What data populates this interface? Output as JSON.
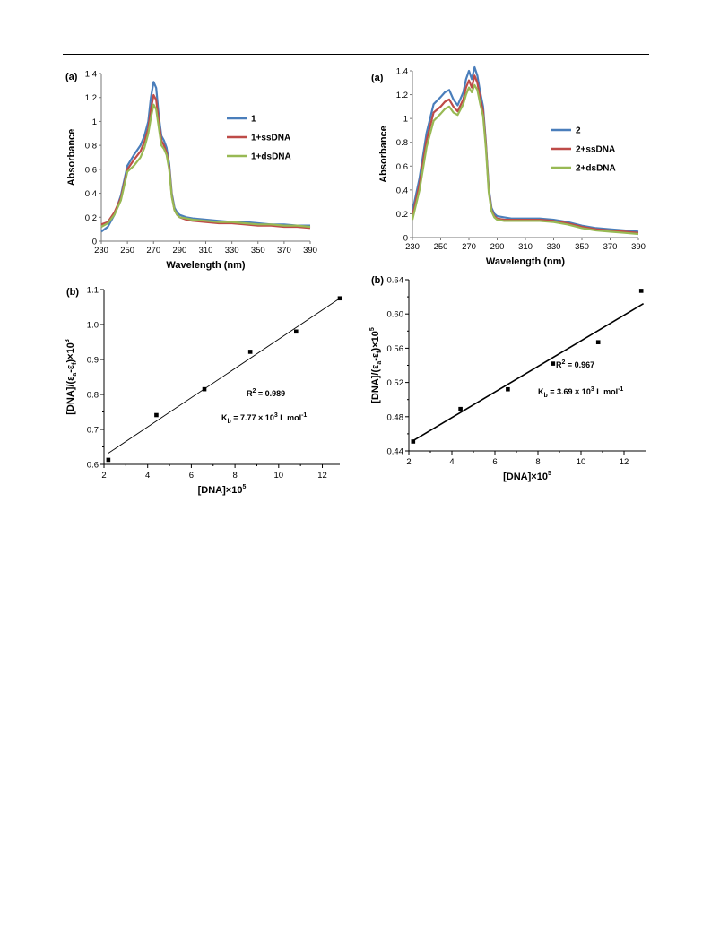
{
  "chart_data": [
    {
      "id": "p1a",
      "type": "line",
      "panel_label": "(a)",
      "xlabel": "Wavelength (nm)",
      "ylabel": "Absorbance",
      "xlim": [
        230,
        390
      ],
      "ylim": [
        0,
        1.4
      ],
      "xticks": [
        "230",
        "250",
        "270",
        "290",
        "310",
        "330",
        "350",
        "370",
        "390"
      ],
      "yticks": [
        "0",
        "0.2",
        "0.4",
        "0.6",
        "0.8",
        "1",
        "1.2",
        "1.4"
      ],
      "legend_position": "center-right",
      "series": [
        {
          "name": "1",
          "color": "#4a7ebb",
          "x": [
            230,
            235,
            240,
            245,
            250,
            255,
            260,
            263,
            266,
            268,
            270,
            272,
            274,
            276,
            278,
            280,
            282,
            284,
            286,
            288,
            290,
            295,
            300,
            310,
            320,
            330,
            340,
            350,
            360,
            370,
            380,
            390
          ],
          "y": [
            0.08,
            0.12,
            0.22,
            0.38,
            0.63,
            0.72,
            0.8,
            0.88,
            1.0,
            1.2,
            1.33,
            1.28,
            1.05,
            0.88,
            0.84,
            0.78,
            0.65,
            0.4,
            0.28,
            0.24,
            0.22,
            0.2,
            0.19,
            0.18,
            0.17,
            0.16,
            0.16,
            0.15,
            0.14,
            0.14,
            0.13,
            0.13
          ]
        },
        {
          "name": "1+ssDNA",
          "color": "#be4b48",
          "x": [
            230,
            235,
            240,
            245,
            250,
            255,
            260,
            263,
            266,
            268,
            270,
            272,
            274,
            276,
            278,
            280,
            282,
            284,
            286,
            288,
            290,
            295,
            300,
            310,
            320,
            330,
            340,
            350,
            360,
            370,
            380,
            390
          ],
          "y": [
            0.14,
            0.16,
            0.24,
            0.36,
            0.6,
            0.68,
            0.75,
            0.83,
            0.94,
            1.1,
            1.22,
            1.18,
            1.0,
            0.84,
            0.8,
            0.74,
            0.62,
            0.38,
            0.26,
            0.22,
            0.2,
            0.18,
            0.17,
            0.16,
            0.15,
            0.15,
            0.14,
            0.13,
            0.13,
            0.12,
            0.12,
            0.11
          ]
        },
        {
          "name": "1+dsDNA",
          "color": "#98b954",
          "x": [
            230,
            235,
            240,
            245,
            250,
            255,
            260,
            263,
            266,
            268,
            270,
            272,
            274,
            276,
            278,
            280,
            282,
            284,
            286,
            288,
            290,
            295,
            300,
            310,
            320,
            330,
            340,
            350,
            360,
            370,
            380,
            390
          ],
          "y": [
            0.12,
            0.15,
            0.22,
            0.34,
            0.58,
            0.63,
            0.7,
            0.78,
            0.9,
            1.03,
            1.14,
            1.1,
            0.95,
            0.8,
            0.77,
            0.72,
            0.6,
            0.37,
            0.26,
            0.22,
            0.2,
            0.19,
            0.18,
            0.17,
            0.16,
            0.16,
            0.15,
            0.14,
            0.14,
            0.13,
            0.13,
            0.12
          ]
        }
      ]
    },
    {
      "id": "p2a",
      "type": "line",
      "panel_label": "(a)",
      "xlabel": "Wavelength (nm)",
      "ylabel": "Absorbance",
      "xlim": [
        230,
        390
      ],
      "ylim": [
        0,
        1.4
      ],
      "xticks": [
        "230",
        "250",
        "270",
        "290",
        "310",
        "330",
        "350",
        "370",
        "390"
      ],
      "yticks": [
        "0",
        "0.2",
        "0.4",
        "0.6",
        "0.8",
        "1",
        "1.2",
        "1.4"
      ],
      "legend_position": "center-right",
      "series": [
        {
          "name": "2",
          "color": "#4a7ebb",
          "x": [
            230,
            235,
            240,
            245,
            250,
            253,
            256,
            259,
            262,
            266,
            268,
            270,
            272,
            274,
            276,
            278,
            280,
            282,
            284,
            286,
            288,
            290,
            295,
            300,
            310,
            320,
            330,
            340,
            350,
            360,
            370,
            380,
            390
          ],
          "y": [
            0.22,
            0.5,
            0.88,
            1.12,
            1.18,
            1.22,
            1.24,
            1.16,
            1.11,
            1.22,
            1.33,
            1.4,
            1.33,
            1.43,
            1.36,
            1.22,
            1.1,
            0.8,
            0.42,
            0.25,
            0.2,
            0.18,
            0.17,
            0.16,
            0.16,
            0.16,
            0.15,
            0.13,
            0.1,
            0.08,
            0.07,
            0.06,
            0.05
          ]
        },
        {
          "name": "2+ssDNA",
          "color": "#be4b48",
          "x": [
            230,
            235,
            240,
            245,
            250,
            253,
            256,
            259,
            262,
            266,
            268,
            270,
            272,
            274,
            276,
            278,
            280,
            282,
            284,
            286,
            288,
            290,
            295,
            300,
            310,
            320,
            330,
            340,
            350,
            360,
            370,
            380,
            390
          ],
          "y": [
            0.18,
            0.45,
            0.82,
            1.05,
            1.1,
            1.14,
            1.16,
            1.1,
            1.06,
            1.16,
            1.26,
            1.32,
            1.26,
            1.36,
            1.3,
            1.17,
            1.06,
            0.78,
            0.4,
            0.23,
            0.18,
            0.16,
            0.15,
            0.15,
            0.15,
            0.15,
            0.14,
            0.12,
            0.09,
            0.07,
            0.06,
            0.05,
            0.04
          ]
        },
        {
          "name": "2+dsDNA",
          "color": "#98b954",
          "x": [
            230,
            235,
            240,
            245,
            250,
            253,
            256,
            259,
            262,
            266,
            268,
            270,
            272,
            274,
            276,
            278,
            280,
            282,
            284,
            286,
            288,
            290,
            295,
            300,
            310,
            320,
            330,
            340,
            350,
            360,
            370,
            380,
            390
          ],
          "y": [
            0.15,
            0.4,
            0.76,
            0.98,
            1.04,
            1.08,
            1.1,
            1.05,
            1.03,
            1.12,
            1.2,
            1.26,
            1.22,
            1.28,
            1.24,
            1.12,
            1.02,
            0.75,
            0.38,
            0.22,
            0.17,
            0.15,
            0.14,
            0.14,
            0.14,
            0.14,
            0.13,
            0.11,
            0.08,
            0.06,
            0.05,
            0.04,
            0.03
          ]
        }
      ]
    },
    {
      "id": "p1b",
      "type": "scatter",
      "panel_label": "(b)",
      "xlabel": "[DNA]×10",
      "xlabel_sup": "5",
      "ylabel_parts": [
        "[DNA]/(ε",
        "a",
        "-ε",
        "f",
        ")×10",
        "3"
      ],
      "xlim": [
        2,
        12.8
      ],
      "ylim": [
        0.6,
        1.1
      ],
      "xticks": [
        {
          "v": 2,
          "t": "2"
        },
        {
          "v": 4,
          "t": "4"
        },
        {
          "v": 6,
          "t": "6"
        },
        {
          "v": 8,
          "t": "8"
        },
        {
          "v": 10,
          "t": "10"
        },
        {
          "v": 12,
          "t": "12"
        }
      ],
      "yticks": [
        {
          "v": 0.6,
          "t": "0.6"
        },
        {
          "v": 0.7,
          "t": "0.7"
        },
        {
          "v": 0.8,
          "t": "0.8"
        },
        {
          "v": 0.9,
          "t": "0.9"
        },
        {
          "v": 1.0,
          "t": "1.0"
        },
        {
          "v": 1.1,
          "t": "1.1"
        }
      ],
      "points": {
        "x": [
          2.2,
          4.4,
          6.6,
          8.7,
          10.8,
          12.8
        ],
        "y": [
          0.613,
          0.741,
          0.815,
          0.922,
          0.98,
          1.075
        ]
      },
      "fit": {
        "x": [
          2.2,
          12.8
        ],
        "y": [
          0.632,
          1.075
        ]
      },
      "r2_label": "R",
      "r2_sup": "2",
      "r2_value": " = 0.989",
      "kb_parts": [
        "K",
        "b",
        " = 7.77 × 10",
        "3",
        "  L mol",
        "-1"
      ]
    },
    {
      "id": "p2b",
      "type": "scatter",
      "panel_label": "(b)",
      "xlabel": "[DNA]×10",
      "xlabel_sup": "5",
      "ylabel_parts": [
        "[DNA]/(ε",
        "a",
        "-ε",
        "f",
        ")×10",
        "5"
      ],
      "xlim": [
        2,
        13
      ],
      "ylim": [
        0.44,
        0.64
      ],
      "xticks": [
        {
          "v": 2,
          "t": "2"
        },
        {
          "v": 4,
          "t": "4"
        },
        {
          "v": 6,
          "t": "6"
        },
        {
          "v": 8,
          "t": "8"
        },
        {
          "v": 10,
          "t": "10"
        },
        {
          "v": 12,
          "t": "12"
        }
      ],
      "yticks": [
        {
          "v": 0.44,
          "t": "0.44"
        },
        {
          "v": 0.48,
          "t": "0.48"
        },
        {
          "v": 0.52,
          "t": "0.52"
        },
        {
          "v": 0.56,
          "t": "0.56"
        },
        {
          "v": 0.6,
          "t": "0.60"
        },
        {
          "v": 0.64,
          "t": "0.64"
        }
      ],
      "points": {
        "x": [
          2.2,
          4.4,
          6.6,
          8.7,
          10.8,
          12.8
        ],
        "y": [
          0.451,
          0.489,
          0.512,
          0.542,
          0.567,
          0.627
        ]
      },
      "fit": {
        "x": [
          2.2,
          12.9
        ],
        "y": [
          0.452,
          0.612
        ]
      },
      "r2_label": "R",
      "r2_sup": "2",
      "r2_value": " = 0.967",
      "kb_parts": [
        "K",
        "b",
        " = 3.69 × 10",
        "3",
        "  L mol",
        "-1"
      ]
    }
  ]
}
